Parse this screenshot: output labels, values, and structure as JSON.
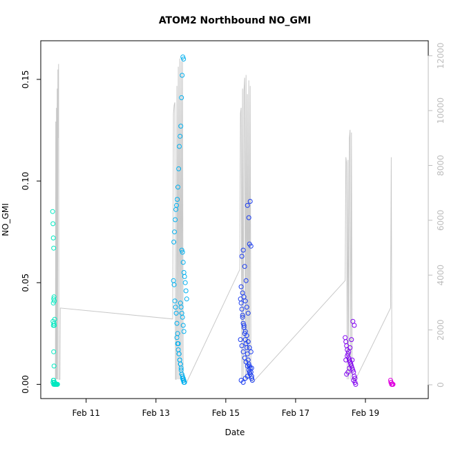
{
  "chart_data": {
    "type": "scatter",
    "title": "ATOM2 Northbound NO_GMI",
    "xlabel": "Date",
    "ylabel": "NO_GMI",
    "x_unit": "days (February)",
    "xlim": [
      9.7,
      20.8
    ],
    "ylim": [
      -0.007,
      0.169
    ],
    "y_ticks": [
      0.0,
      0.05,
      0.1,
      0.15
    ],
    "y_tick_labels": [
      "0.00",
      "0.05",
      "0.10",
      "0.15"
    ],
    "x_ticks": [
      11,
      13,
      15,
      17,
      19
    ],
    "x_tick_labels": [
      "Feb 11",
      "Feb 13",
      "Feb 15",
      "Feb 17",
      "Feb 19"
    ],
    "secondary_axis": {
      "ylim": [
        -503,
        12547
      ],
      "ticks": [
        0,
        2000,
        4000,
        6000,
        8000,
        10000,
        12000
      ],
      "tick_labels": [
        "0",
        "2000",
        "4000",
        "6000",
        "8000",
        "10000",
        "12000"
      ],
      "color": "#bdbdbd"
    },
    "altitude_series": {
      "color": "#c8c8c8",
      "x": [
        10.12,
        10.13,
        10.14,
        10.15,
        10.16,
        10.17,
        10.18,
        10.19,
        10.2,
        10.21,
        10.22,
        10.23,
        10.24,
        10.25,
        10.26,
        13.48,
        13.5,
        13.52,
        13.54,
        13.56,
        13.58,
        13.6,
        13.62,
        13.64,
        13.66,
        13.68,
        13.7,
        13.72,
        13.74,
        13.76,
        13.78,
        13.8,
        13.82,
        13.84,
        13.86,
        13.88,
        13.9,
        15.4,
        15.42,
        15.44,
        15.46,
        15.48,
        15.5,
        15.52,
        15.54,
        15.56,
        15.58,
        15.6,
        15.62,
        15.64,
        15.66,
        15.68,
        15.7,
        15.72,
        15.74,
        15.76,
        15.78,
        18.42,
        18.44,
        18.46,
        18.48,
        18.5,
        18.52,
        18.54,
        18.56,
        18.58,
        18.6,
        18.62,
        18.64,
        18.66,
        18.68,
        18.7,
        19.72,
        19.74,
        19.76
      ],
      "y": [
        200,
        9600,
        200,
        10100,
        200,
        10800,
        200,
        11500,
        9000,
        11700,
        200,
        200,
        200,
        200,
        2800,
        2400,
        9900,
        10200,
        10300,
        200,
        200,
        10900,
        200,
        11600,
        200,
        11900,
        200,
        11800,
        200,
        11900,
        200,
        200,
        100,
        100,
        100,
        100,
        150,
        4200,
        9900,
        10100,
        200,
        10800,
        200,
        10700,
        11200,
        200,
        11300,
        200,
        10600,
        200,
        11100,
        200,
        10900,
        200,
        200,
        100,
        100,
        3800,
        8300,
        8100,
        200,
        8200,
        200,
        9000,
        9300,
        200,
        9200,
        200,
        200,
        200,
        200,
        150,
        2800,
        8300,
        100
      ]
    },
    "series": [
      {
        "color": "#00e8c0",
        "x": [
          10.04,
          10.05,
          10.06,
          10.07,
          10.08,
          10.09,
          10.1,
          10.05,
          10.06,
          10.07,
          10.08,
          10.09,
          10.1,
          10.11,
          10.12,
          10.13,
          10.14,
          10.15,
          10.16,
          10.17,
          10.18,
          10.06,
          10.07,
          10.08,
          10.09,
          10.05,
          10.07,
          10.08,
          10.06,
          10.07,
          10.1,
          10.12,
          10.14
        ],
        "y": [
          0.085,
          0.079,
          0.072,
          0.067,
          0.043,
          0.041,
          0.032,
          0.031,
          0.029,
          0.016,
          0.009,
          0.0,
          0.0,
          0.0,
          0.0,
          0.0,
          0.0,
          0.0,
          0.0,
          0.0,
          0.0,
          0.04,
          0.042,
          0.03,
          0.029,
          0.001,
          0.002,
          0.001,
          0.002,
          0.0,
          0.001,
          0.0,
          0.0
        ]
      },
      {
        "color": "#00b0f0",
        "x": [
          13.5,
          13.52,
          13.54,
          13.56,
          13.58,
          13.6,
          13.62,
          13.64,
          13.66,
          13.68,
          13.7,
          13.72,
          13.74,
          13.76,
          13.78,
          13.8,
          13.79,
          13.77,
          13.75,
          13.73,
          13.71,
          13.69,
          13.67,
          13.65,
          13.63,
          13.61,
          13.59,
          13.57,
          13.55,
          13.53,
          13.51,
          13.74,
          13.76,
          13.78,
          13.8,
          13.82,
          13.84,
          13.86,
          13.88,
          13.7,
          13.72,
          13.74,
          13.76,
          13.78,
          13.8,
          13.6,
          13.62,
          13.64,
          13.66,
          13.68,
          13.7,
          13.72,
          13.74,
          13.76,
          13.78,
          13.8,
          13.82
        ],
        "y": [
          0.051,
          0.049,
          0.041,
          0.038,
          0.035,
          0.03,
          0.025,
          0.02,
          0.015,
          0.012,
          0.01,
          0.008,
          0.005,
          0.003,
          0.002,
          0.001,
          0.16,
          0.161,
          0.152,
          0.141,
          0.127,
          0.122,
          0.117,
          0.106,
          0.097,
          0.091,
          0.088,
          0.086,
          0.081,
          0.075,
          0.07,
          0.066,
          0.065,
          0.06,
          0.055,
          0.053,
          0.05,
          0.046,
          0.042,
          0.04,
          0.038,
          0.035,
          0.033,
          0.029,
          0.026,
          0.023,
          0.02,
          0.017,
          0.015,
          0.012,
          0.01,
          0.007,
          0.005,
          0.004,
          0.003,
          0.002,
          0.001
        ]
      },
      {
        "color": "#1a3cf0",
        "x": [
          15.42,
          15.44,
          15.46,
          15.48,
          15.5,
          15.52,
          15.54,
          15.56,
          15.58,
          15.6,
          15.62,
          15.64,
          15.66,
          15.68,
          15.7,
          15.72,
          15.74,
          15.76,
          15.46,
          15.5,
          15.54,
          15.58,
          15.62,
          15.66,
          15.7,
          15.44,
          15.48,
          15.52,
          15.56,
          15.6,
          15.64,
          15.68,
          15.72,
          15.42,
          15.46,
          15.5,
          15.54,
          15.58,
          15.62,
          15.66,
          15.7,
          15.74,
          15.48,
          15.52,
          15.56,
          15.6,
          15.64,
          15.68,
          15.72,
          15.44,
          15.5,
          15.56,
          15.62,
          15.68,
          15.74
        ],
        "y": [
          0.042,
          0.04,
          0.037,
          0.034,
          0.03,
          0.028,
          0.025,
          0.022,
          0.02,
          0.018,
          0.015,
          0.012,
          0.01,
          0.009,
          0.008,
          0.006,
          0.004,
          0.002,
          0.063,
          0.066,
          0.058,
          0.051,
          0.088,
          0.082,
          0.09,
          0.048,
          0.045,
          0.043,
          0.041,
          0.038,
          0.035,
          0.069,
          0.068,
          0.022,
          0.019,
          0.016,
          0.013,
          0.011,
          0.009,
          0.007,
          0.005,
          0.003,
          0.033,
          0.029,
          0.026,
          0.024,
          0.021,
          0.018,
          0.016,
          0.002,
          0.001,
          0.003,
          0.004,
          0.006,
          0.008
        ]
      },
      {
        "color": "#8000f0",
        "x": [
          18.42,
          18.44,
          18.46,
          18.48,
          18.5,
          18.52,
          18.54,
          18.56,
          18.58,
          18.6,
          18.62,
          18.64,
          18.66,
          18.68,
          18.7,
          18.44,
          18.48,
          18.52,
          18.56,
          18.6,
          18.64,
          18.68,
          18.46,
          18.5,
          18.54,
          18.58,
          18.62,
          18.66,
          18.7,
          18.72
        ],
        "y": [
          0.023,
          0.021,
          0.019,
          0.017,
          0.015,
          0.013,
          0.012,
          0.011,
          0.01,
          0.009,
          0.008,
          0.007,
          0.006,
          0.004,
          0.003,
          0.012,
          0.014,
          0.016,
          0.018,
          0.022,
          0.031,
          0.029,
          0.005,
          0.006,
          0.008,
          0.01,
          0.012,
          0.002,
          0.001,
          0.0
        ]
      },
      {
        "color": "#e000e0",
        "x": [
          19.72,
          19.73,
          19.74,
          19.75,
          19.76,
          19.77,
          19.78,
          19.79
        ],
        "y": [
          0.002,
          0.001,
          0.001,
          0.0,
          0.0,
          0.0,
          0.0,
          0.0
        ]
      }
    ]
  }
}
